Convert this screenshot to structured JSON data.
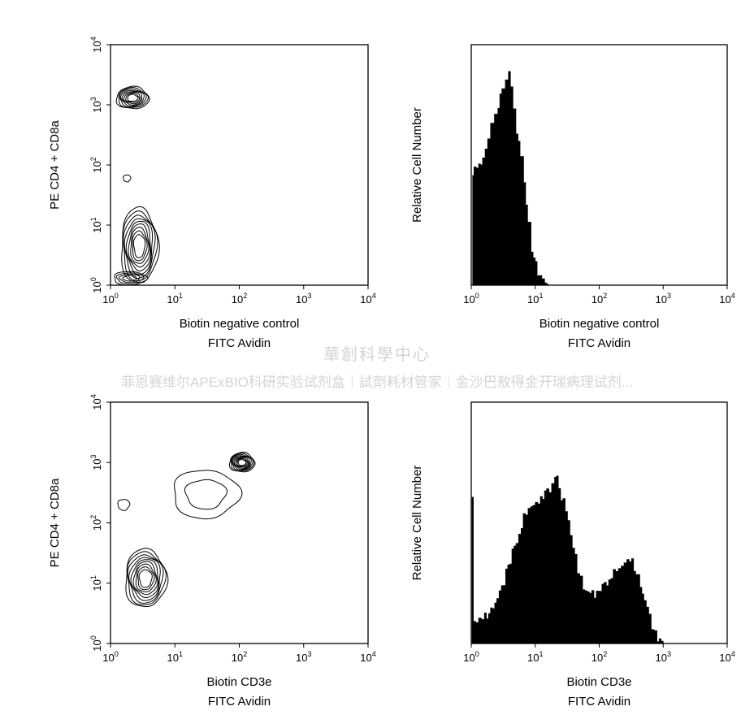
{
  "watermark": {
    "title": "華創科學中心",
    "subtitle": "菲恩赛维尔APExBIO科研实验试剂盒｜試劑耗材管家｜金沙巴敖得金开瑞病理试剂..."
  },
  "chart_data": [
    {
      "type": "contour",
      "panel": "top-left",
      "xlabel": "Biotin negative control",
      "xlabel2": "FITC Avidin",
      "ylabel": "PE CD4 + CD8a",
      "x_scale": "log",
      "y_scale": "log",
      "xlim": [
        1,
        10000
      ],
      "ylim": [
        1,
        10000
      ],
      "x_ticks": [
        1,
        10,
        100,
        1000,
        10000
      ],
      "y_ticks": [
        1,
        10,
        100,
        1000,
        10000
      ],
      "populations": [
        {
          "x": 2.2,
          "y": 1300,
          "sx": 0.22,
          "sy": 0.16,
          "rings": 8
        },
        {
          "x": 2.8,
          "y": 4.5,
          "sx": 0.25,
          "sy": 0.55,
          "rings": 9
        },
        {
          "x": 2.0,
          "y": 1.3,
          "sx": 0.22,
          "sy": 0.1,
          "rings": 4
        },
        {
          "x": 1.8,
          "y": 60,
          "sx": 0.05,
          "sy": 0.05,
          "rings": 1
        }
      ]
    },
    {
      "type": "histogram",
      "panel": "top-right",
      "xlabel": "Biotin negative control",
      "xlabel2": "FITC Avidin",
      "ylabel": "Relative Cell Number",
      "x_scale": "log",
      "xlim": [
        1,
        10000
      ],
      "x_ticks": [
        1,
        10,
        100,
        1000,
        10000
      ],
      "profile": [
        [
          1.0,
          0.0
        ],
        [
          1.05,
          0.45
        ],
        [
          1.1,
          0.52
        ],
        [
          1.3,
          0.5
        ],
        [
          1.5,
          0.55
        ],
        [
          1.8,
          0.62
        ],
        [
          2.0,
          0.68
        ],
        [
          2.3,
          0.73
        ],
        [
          2.6,
          0.78
        ],
        [
          3.0,
          0.83
        ],
        [
          3.4,
          0.86
        ],
        [
          3.8,
          0.91
        ],
        [
          4.1,
          0.85
        ],
        [
          4.5,
          0.76
        ],
        [
          5.0,
          0.66
        ],
        [
          5.8,
          0.55
        ],
        [
          6.6,
          0.42
        ],
        [
          7.6,
          0.28
        ],
        [
          8.6,
          0.16
        ],
        [
          10.0,
          0.08
        ],
        [
          11.5,
          0.04
        ],
        [
          14.0,
          0.01
        ],
        [
          16.0,
          0.0
        ]
      ]
    },
    {
      "type": "contour",
      "panel": "bottom-left",
      "xlabel": "Biotin CD3e",
      "xlabel2": "FITC Avidin",
      "ylabel": "PE CD4 + CD8a",
      "x_scale": "log",
      "y_scale": "log",
      "xlim": [
        1,
        10000
      ],
      "ylim": [
        1,
        10000
      ],
      "x_ticks": [
        1,
        10,
        100,
        1000,
        10000
      ],
      "y_ticks": [
        1,
        10,
        100,
        1000,
        10000
      ],
      "populations": [
        {
          "x": 110,
          "y": 1000,
          "sx": 0.17,
          "sy": 0.14,
          "rings": 9
        },
        {
          "x": 3.5,
          "y": 12,
          "sx": 0.28,
          "sy": 0.42,
          "rings": 9
        },
        {
          "x": 30,
          "y": 300,
          "sx": 0.45,
          "sy": 0.35,
          "rings": 2
        },
        {
          "x": 1.6,
          "y": 200,
          "sx": 0.08,
          "sy": 0.08,
          "rings": 1
        }
      ]
    },
    {
      "type": "histogram",
      "panel": "bottom-right",
      "xlabel": "Biotin CD3e",
      "xlabel2": "FITC Avidin",
      "ylabel": "Relative Cell Number",
      "x_scale": "log",
      "xlim": [
        1,
        10000
      ],
      "x_ticks": [
        1,
        10,
        100,
        1000,
        10000
      ],
      "profile": [
        [
          1.0,
          0.0
        ],
        [
          1.03,
          0.6
        ],
        [
          1.08,
          0.1
        ],
        [
          1.3,
          0.09
        ],
        [
          1.6,
          0.11
        ],
        [
          2.0,
          0.14
        ],
        [
          2.5,
          0.19
        ],
        [
          3.2,
          0.27
        ],
        [
          4.0,
          0.36
        ],
        [
          5.0,
          0.44
        ],
        [
          6.0,
          0.5
        ],
        [
          7.0,
          0.56
        ],
        [
          8.5,
          0.6
        ],
        [
          10.0,
          0.58
        ],
        [
          12.0,
          0.62
        ],
        [
          15.0,
          0.65
        ],
        [
          18.0,
          0.68
        ],
        [
          20.0,
          0.73
        ],
        [
          23.0,
          0.66
        ],
        [
          27.0,
          0.6
        ],
        [
          32.0,
          0.52
        ],
        [
          38.0,
          0.42
        ],
        [
          45.0,
          0.3
        ],
        [
          55.0,
          0.24
        ],
        [
          70.0,
          0.21
        ],
        [
          90.0,
          0.22
        ],
        [
          110.0,
          0.24
        ],
        [
          140.0,
          0.27
        ],
        [
          180.0,
          0.31
        ],
        [
          220.0,
          0.34
        ],
        [
          270.0,
          0.37
        ],
        [
          320.0,
          0.34
        ],
        [
          400.0,
          0.28
        ],
        [
          500.0,
          0.18
        ],
        [
          650.0,
          0.08
        ],
        [
          800.0,
          0.03
        ],
        [
          1000.0,
          0.0
        ]
      ]
    }
  ]
}
